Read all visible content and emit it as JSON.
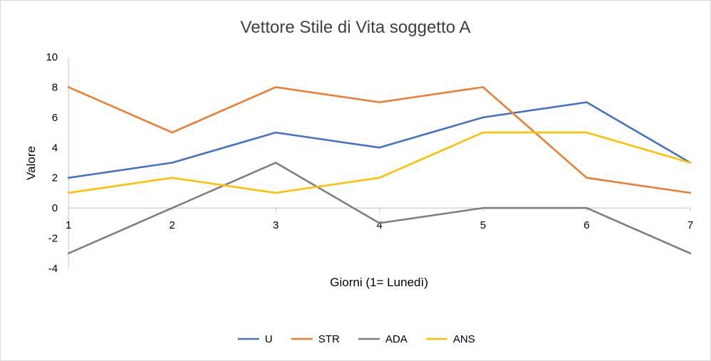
{
  "chart_data": {
    "type": "line",
    "title": "Vettore Stile di Vita soggetto A",
    "xlabel": "Giorni (1= Lunedì)",
    "ylabel": "Valore",
    "categories": [
      "1",
      "2",
      "3",
      "4",
      "5",
      "6",
      "7"
    ],
    "ylim": [
      -4,
      10
    ],
    "yticks": [
      "-4",
      "-2",
      "0",
      "2",
      "4",
      "6",
      "8",
      "10"
    ],
    "grid": false,
    "legend": "bottom",
    "series": [
      {
        "name": "U",
        "color": "#4472C4",
        "values": [
          2,
          3,
          5,
          4,
          6,
          7,
          3
        ]
      },
      {
        "name": "STR",
        "color": "#ED7D31",
        "values": [
          8,
          5,
          8,
          7,
          8,
          2,
          1
        ]
      },
      {
        "name": "ADA",
        "color": "#7F7F7F",
        "values": [
          -3,
          0,
          3,
          -1,
          0,
          0,
          -3
        ]
      },
      {
        "name": "ANS",
        "color": "#FFC000",
        "values": [
          1,
          2,
          1,
          2,
          5,
          5,
          3
        ]
      }
    ]
  }
}
